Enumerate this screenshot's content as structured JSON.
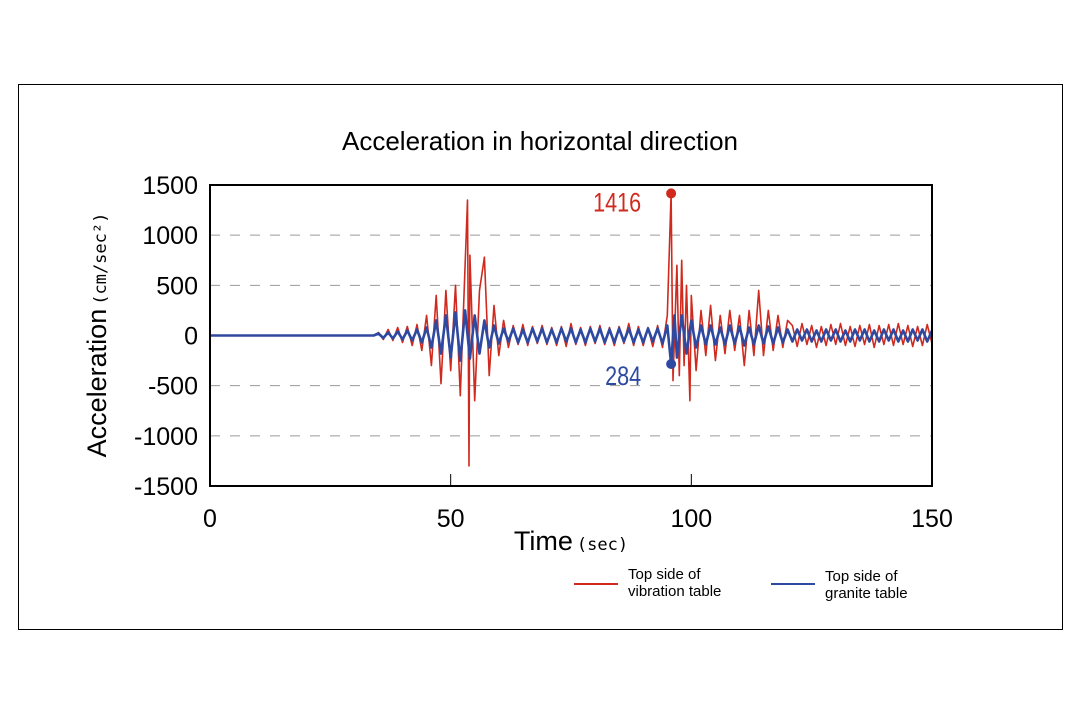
{
  "chart_data": {
    "type": "line",
    "title": "Acceleration in horizontal direction",
    "xlabel": "Time",
    "xlabel_unit": "(sec)",
    "ylabel": "Acceleration",
    "ylabel_unit": "(cm/sec²)",
    "xlim": [
      0,
      150
    ],
    "ylim": [
      -1500,
      1500
    ],
    "xticks": [
      "0",
      "50",
      "100",
      "150"
    ],
    "yticks": [
      "1500",
      "1000",
      "500",
      "0",
      "-500",
      "-1000",
      "-1500"
    ],
    "grid": "horizontal dashed",
    "legend_position": "bottom-right",
    "series": [
      {
        "name": "Top side of vibration table",
        "color": "#d02a1e",
        "points": [
          [
            0,
            0
          ],
          [
            34,
            0
          ],
          [
            35,
            30
          ],
          [
            36,
            -40
          ],
          [
            37,
            60
          ],
          [
            38,
            -50
          ],
          [
            39,
            80
          ],
          [
            40,
            -70
          ],
          [
            41,
            90
          ],
          [
            42,
            -100
          ],
          [
            43,
            110
          ],
          [
            44,
            -150
          ],
          [
            45,
            200
          ],
          [
            46,
            -300
          ],
          [
            47,
            400
          ],
          [
            48,
            -480
          ],
          [
            49,
            450
          ],
          [
            50,
            -350
          ],
          [
            51,
            500
          ],
          [
            52,
            -600
          ],
          [
            53,
            700
          ],
          [
            53.5,
            1350
          ],
          [
            53.8,
            -1300
          ],
          [
            54,
            800
          ],
          [
            55,
            -650
          ],
          [
            56,
            450
          ],
          [
            57,
            780
          ],
          [
            58,
            -400
          ],
          [
            59,
            300
          ],
          [
            60,
            -200
          ],
          [
            61,
            150
          ],
          [
            62,
            -120
          ],
          [
            63,
            100
          ],
          [
            64,
            -90
          ],
          [
            65,
            110
          ],
          [
            66,
            -100
          ],
          [
            67,
            90
          ],
          [
            68,
            -80
          ],
          [
            69,
            100
          ],
          [
            70,
            -90
          ],
          [
            71,
            80
          ],
          [
            72,
            -100
          ],
          [
            73,
            90
          ],
          [
            74,
            -110
          ],
          [
            75,
            120
          ],
          [
            76,
            -90
          ],
          [
            77,
            80
          ],
          [
            78,
            -100
          ],
          [
            79,
            90
          ],
          [
            80,
            -80
          ],
          [
            81,
            100
          ],
          [
            82,
            -90
          ],
          [
            83,
            80
          ],
          [
            84,
            -100
          ],
          [
            85,
            90
          ],
          [
            86,
            -80
          ],
          [
            87,
            120
          ],
          [
            88,
            -100
          ],
          [
            89,
            90
          ],
          [
            90,
            -100
          ],
          [
            91,
            80
          ],
          [
            92,
            -110
          ],
          [
            93,
            100
          ],
          [
            94,
            -120
          ],
          [
            95,
            200
          ],
          [
            95.8,
            1416
          ],
          [
            96.2,
            -450
          ],
          [
            97,
            700
          ],
          [
            97.5,
            -400
          ],
          [
            98,
            750
          ],
          [
            98.5,
            -300
          ],
          [
            99,
            500
          ],
          [
            99.7,
            -650
          ],
          [
            100,
            400
          ],
          [
            101,
            -350
          ],
          [
            102,
            250
          ],
          [
            103,
            -200
          ],
          [
            104,
            300
          ],
          [
            105,
            -250
          ],
          [
            106,
            200
          ],
          [
            107,
            -180
          ],
          [
            108,
            250
          ],
          [
            109,
            -150
          ],
          [
            110,
            200
          ],
          [
            111,
            -300
          ],
          [
            112,
            250
          ],
          [
            113,
            -200
          ],
          [
            114,
            450
          ],
          [
            115,
            -200
          ],
          [
            116,
            250
          ],
          [
            117,
            -150
          ],
          [
            118,
            200
          ],
          [
            119,
            -120
          ],
          [
            120,
            150
          ],
          [
            121,
            100
          ],
          [
            122,
            -110
          ],
          [
            123,
            120
          ],
          [
            124,
            -90
          ],
          [
            125,
            100
          ],
          [
            126,
            -120
          ],
          [
            127,
            90
          ],
          [
            128,
            -100
          ],
          [
            129,
            110
          ],
          [
            130,
            -90
          ],
          [
            131,
            120
          ],
          [
            132,
            -100
          ],
          [
            133,
            90
          ],
          [
            134,
            -110
          ],
          [
            135,
            100
          ],
          [
            136,
            -90
          ],
          [
            137,
            110
          ],
          [
            138,
            -120
          ],
          [
            139,
            100
          ],
          [
            140,
            -90
          ],
          [
            141,
            110
          ],
          [
            142,
            -100
          ],
          [
            143,
            120
          ],
          [
            144,
            -90
          ],
          [
            145,
            100
          ],
          [
            146,
            -110
          ],
          [
            147,
            90
          ],
          [
            148,
            -100
          ],
          [
            149,
            110
          ],
          [
            150,
            -80
          ]
        ]
      },
      {
        "name": "Top side of granite table",
        "color": "#2e49a0",
        "points": [
          [
            0,
            0
          ],
          [
            34,
            0
          ],
          [
            35,
            20
          ],
          [
            36,
            -25
          ],
          [
            37,
            30
          ],
          [
            38,
            -30
          ],
          [
            39,
            40
          ],
          [
            40,
            -40
          ],
          [
            41,
            50
          ],
          [
            42,
            -50
          ],
          [
            43,
            60
          ],
          [
            44,
            -70
          ],
          [
            45,
            80
          ],
          [
            46,
            -120
          ],
          [
            47,
            150
          ],
          [
            48,
            -180
          ],
          [
            49,
            200
          ],
          [
            50,
            -220
          ],
          [
            51,
            230
          ],
          [
            52,
            -250
          ],
          [
            53,
            250
          ],
          [
            54,
            -230
          ],
          [
            55,
            200
          ],
          [
            56,
            -180
          ],
          [
            57,
            150
          ],
          [
            58,
            -120
          ],
          [
            59,
            100
          ],
          [
            60,
            -80
          ],
          [
            61,
            70
          ],
          [
            62,
            -60
          ],
          [
            63,
            70
          ],
          [
            64,
            -70
          ],
          [
            65,
            60
          ],
          [
            66,
            -70
          ],
          [
            67,
            70
          ],
          [
            68,
            -60
          ],
          [
            69,
            70
          ],
          [
            70,
            -70
          ],
          [
            71,
            60
          ],
          [
            72,
            -70
          ],
          [
            73,
            70
          ],
          [
            74,
            -60
          ],
          [
            75,
            70
          ],
          [
            76,
            -70
          ],
          [
            77,
            60
          ],
          [
            78,
            -70
          ],
          [
            79,
            70
          ],
          [
            80,
            -60
          ],
          [
            81,
            70
          ],
          [
            82,
            -70
          ],
          [
            83,
            60
          ],
          [
            84,
            -70
          ],
          [
            85,
            70
          ],
          [
            86,
            -60
          ],
          [
            87,
            70
          ],
          [
            88,
            -70
          ],
          [
            89,
            60
          ],
          [
            90,
            -70
          ],
          [
            91,
            70
          ],
          [
            92,
            -60
          ],
          [
            93,
            70
          ],
          [
            94,
            -80
          ],
          [
            95,
            100
          ],
          [
            95.8,
            -284
          ],
          [
            96.5,
            200
          ],
          [
            97,
            -220
          ],
          [
            98,
            200
          ],
          [
            99,
            -180
          ],
          [
            100,
            150
          ],
          [
            101,
            -120
          ],
          [
            102,
            100
          ],
          [
            103,
            -90
          ],
          [
            104,
            100
          ],
          [
            105,
            -90
          ],
          [
            106,
            80
          ],
          [
            107,
            -90
          ],
          [
            108,
            100
          ],
          [
            109,
            -80
          ],
          [
            110,
            90
          ],
          [
            111,
            -100
          ],
          [
            112,
            80
          ],
          [
            113,
            -90
          ],
          [
            114,
            100
          ],
          [
            115,
            -80
          ],
          [
            116,
            90
          ],
          [
            117,
            -80
          ],
          [
            118,
            80
          ],
          [
            119,
            -70
          ],
          [
            120,
            60
          ],
          [
            121,
            -60
          ],
          [
            122,
            60
          ],
          [
            123,
            -50
          ],
          [
            124,
            60
          ],
          [
            125,
            -60
          ],
          [
            126,
            50
          ],
          [
            127,
            -60
          ],
          [
            128,
            60
          ],
          [
            129,
            -50
          ],
          [
            130,
            60
          ],
          [
            131,
            -60
          ],
          [
            132,
            50
          ],
          [
            133,
            -60
          ],
          [
            134,
            60
          ],
          [
            135,
            -50
          ],
          [
            136,
            60
          ],
          [
            137,
            -60
          ],
          [
            138,
            50
          ],
          [
            139,
            -60
          ],
          [
            140,
            60
          ],
          [
            141,
            -50
          ],
          [
            142,
            60
          ],
          [
            143,
            -60
          ],
          [
            144,
            50
          ],
          [
            145,
            -60
          ],
          [
            146,
            60
          ],
          [
            147,
            -50
          ],
          [
            148,
            60
          ],
          [
            149,
            -60
          ],
          [
            150,
            50
          ]
        ]
      }
    ],
    "annotations": [
      {
        "text": "1416",
        "x": 95.8,
        "y": 1416,
        "color": "#d02a1e"
      },
      {
        "text": "284",
        "x": 95.8,
        "y": -284,
        "color": "#2e49a0"
      }
    ]
  }
}
